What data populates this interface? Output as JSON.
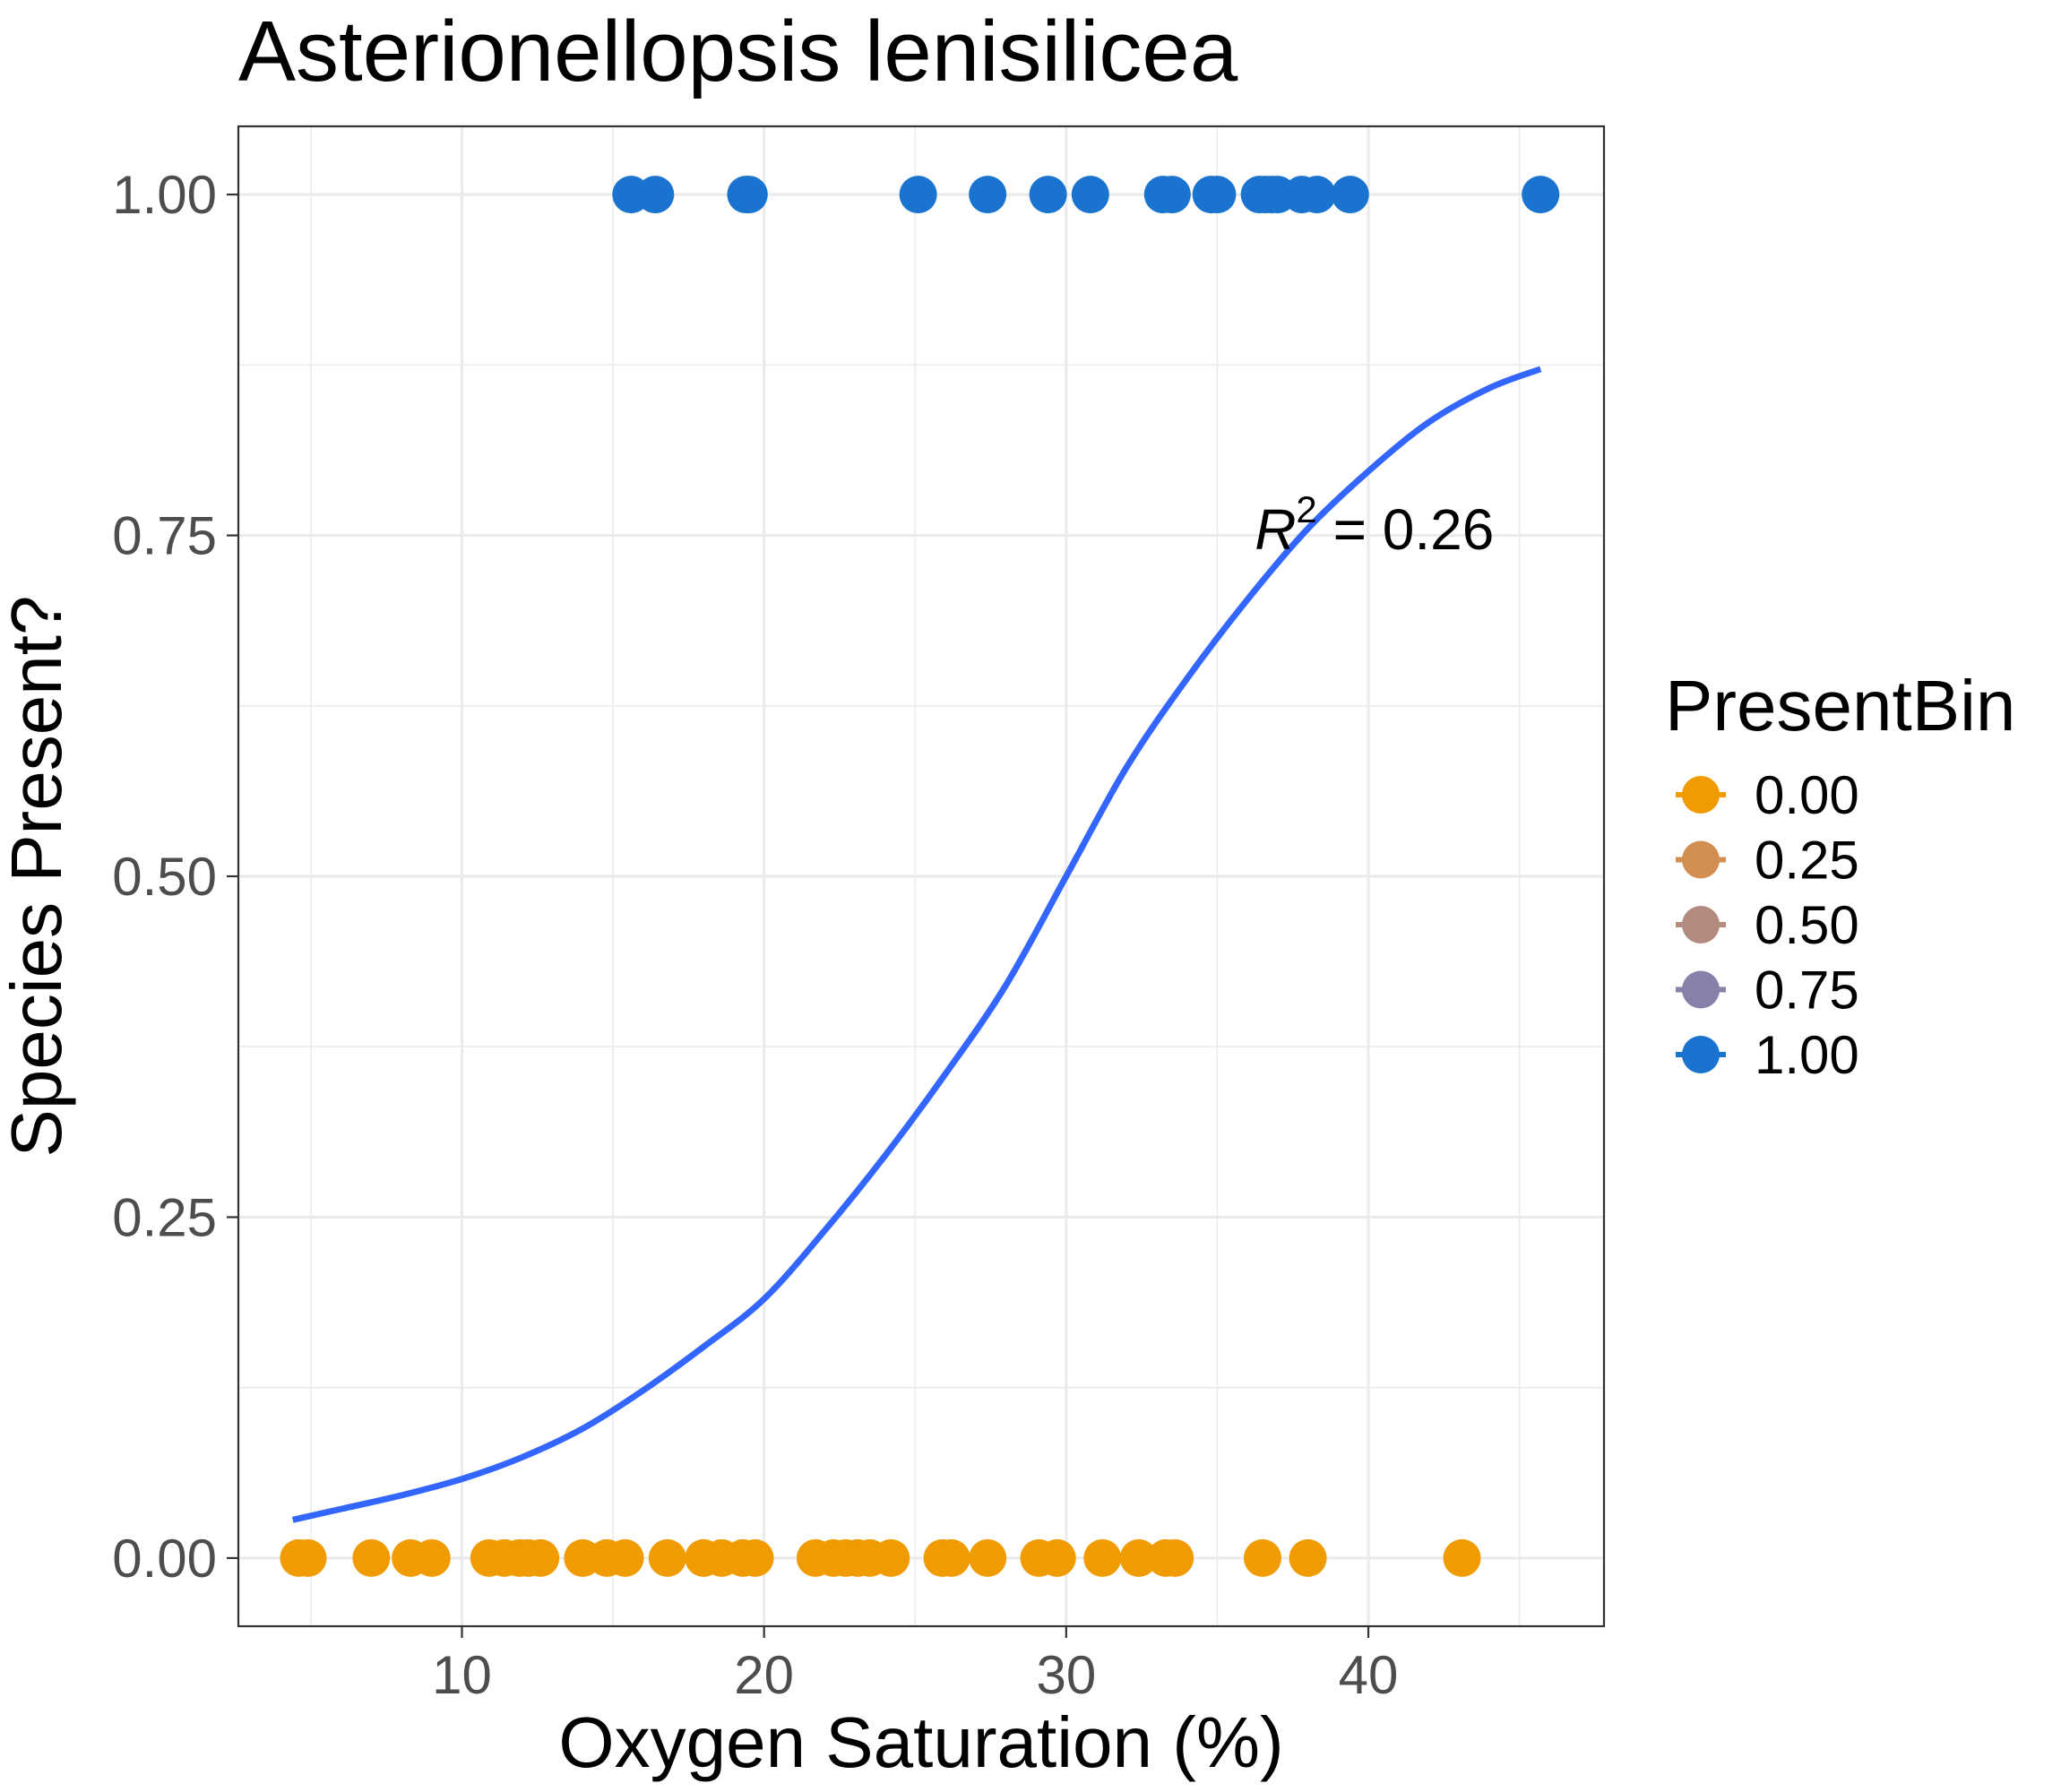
{
  "chart_data": {
    "type": "scatter",
    "title": "Asterionellopsis lenisilicea",
    "xlabel": "Oxygen Saturation (%)",
    "ylabel": "Species Present?",
    "xlim": [
      2.6,
      47.8
    ],
    "ylim": [
      -0.05,
      1.05
    ],
    "x_ticks": [
      10,
      20,
      30,
      40
    ],
    "x_tick_labels": [
      "10",
      "20",
      "30",
      "40"
    ],
    "y_ticks": [
      0,
      0.25,
      0.5,
      0.75,
      1
    ],
    "y_tick_labels": [
      "0.00",
      "0.25",
      "0.50",
      "0.75",
      "1.00"
    ],
    "grid": true,
    "legend": {
      "title": "PresentBin",
      "position": "right",
      "entries": [
        {
          "label": "0.00",
          "color": "#f09b00"
        },
        {
          "label": "0.25",
          "color": "#d38f52"
        },
        {
          "label": "0.50",
          "color": "#b28a7f"
        },
        {
          "label": "0.75",
          "color": "#8781a9"
        },
        {
          "label": "1.00",
          "color": "#1a74cf"
        }
      ]
    },
    "series": [
      {
        "bin": "1.00",
        "color": "#1a74cf",
        "y": 1,
        "x": [
          15.6,
          16.4,
          19.4,
          19.5,
          25.1,
          27.4,
          29.4,
          30.8,
          33.2,
          33.5,
          34.8,
          35.0,
          36.4,
          36.6,
          36.8,
          37.0,
          37.8,
          38.3,
          39.4,
          45.7
        ]
      },
      {
        "bin": "0.00",
        "color": "#f09b00",
        "y": 0,
        "x": [
          4.6,
          4.9,
          7.0,
          8.3,
          9.0,
          10.9,
          11.4,
          11.9,
          12.2,
          12.6,
          14.0,
          14.8,
          15.4,
          16.8,
          18.0,
          18.6,
          19.3,
          19.7,
          21.7,
          22.3,
          22.7,
          23.1,
          23.5,
          24.2,
          25.9,
          26.2,
          27.4,
          29.1,
          29.7,
          31.2,
          32.4,
          33.3,
          33.6,
          36.5,
          38.0,
          43.1
        ]
      }
    ],
    "fit_line": {
      "color": "#3366ff",
      "x": [
        4.4,
        6,
        8,
        10,
        12,
        14,
        16,
        18,
        20,
        22,
        24,
        26,
        28,
        30,
        32,
        34,
        36,
        38,
        40,
        42,
        44,
        45.7
      ],
      "y": [
        0.028,
        0.036,
        0.046,
        0.058,
        0.074,
        0.095,
        0.123,
        0.155,
        0.19,
        0.24,
        0.295,
        0.355,
        0.42,
        0.5,
        0.58,
        0.645,
        0.703,
        0.755,
        0.797,
        0.833,
        0.858,
        0.872
      ]
    },
    "annotation": {
      "text": "R² = 0.26",
      "base": "R",
      "superscript": "2",
      "rest": " = 0.26",
      "x": 40.2,
      "y": 0.74
    }
  }
}
